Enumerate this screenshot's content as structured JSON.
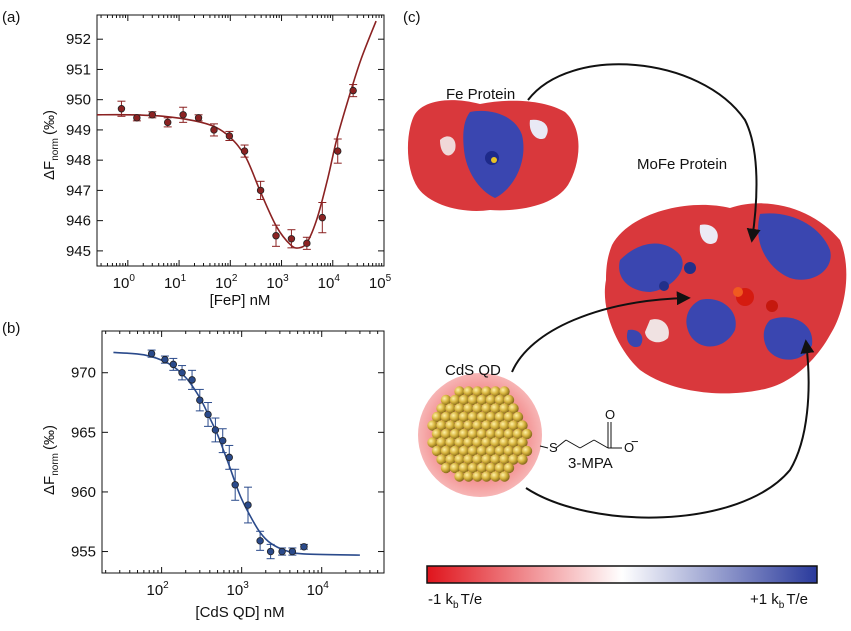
{
  "panels": {
    "a": "(a)",
    "b": "(b)",
    "c": "(c)"
  },
  "chart_data": [
    {
      "type": "scatter",
      "panel": "(a)",
      "xlabel": "[FeP] nM",
      "ylabel_main": "ΔF",
      "ylabel_sub": "norm",
      "ylabel_unit": "(‰)",
      "xscale": "log",
      "xlim": [
        0.25,
        100000
      ],
      "ylim": [
        944.5,
        952.8
      ],
      "x_ticks": [
        {
          "v": 1,
          "base": "10",
          "exp": "0"
        },
        {
          "v": 10,
          "base": "10",
          "exp": "1"
        },
        {
          "v": 100,
          "base": "10",
          "exp": "2"
        },
        {
          "v": 1000,
          "base": "10",
          "exp": "3"
        },
        {
          "v": 10000,
          "base": "10",
          "exp": "4"
        },
        {
          "v": 100000,
          "base": "10",
          "exp": "5"
        }
      ],
      "y_ticks": [
        945,
        946,
        947,
        948,
        949,
        950,
        951,
        952
      ],
      "color": "#8b2222",
      "points": [
        {
          "x": 0.75,
          "y": 949.7,
          "err": 0.25
        },
        {
          "x": 1.5,
          "y": 949.4,
          "err": 0.1
        },
        {
          "x": 3.0,
          "y": 949.5,
          "err": 0.1
        },
        {
          "x": 6.0,
          "y": 949.25,
          "err": 0.15
        },
        {
          "x": 12,
          "y": 949.5,
          "err": 0.25
        },
        {
          "x": 24,
          "y": 949.4,
          "err": 0.1
        },
        {
          "x": 48,
          "y": 949.0,
          "err": 0.2
        },
        {
          "x": 96,
          "y": 948.8,
          "err": 0.15
        },
        {
          "x": 190,
          "y": 948.3,
          "err": 0.2
        },
        {
          "x": 390,
          "y": 947.0,
          "err": 0.3
        },
        {
          "x": 780,
          "y": 945.5,
          "err": 0.35
        },
        {
          "x": 1560,
          "y": 945.4,
          "err": 0.3
        },
        {
          "x": 3120,
          "y": 945.25,
          "err": 0.2
        },
        {
          "x": 6250,
          "y": 946.1,
          "err": 0.5
        },
        {
          "x": 12500,
          "y": 948.3,
          "err": 0.4
        },
        {
          "x": 25000,
          "y": 950.3,
          "err": 0.2
        }
      ],
      "fit": [
        [
          0.25,
          949.5
        ],
        [
          1,
          949.5
        ],
        [
          5,
          949.45
        ],
        [
          20,
          949.3
        ],
        [
          50,
          949.1
        ],
        [
          100,
          948.75
        ],
        [
          200,
          948.1
        ],
        [
          400,
          946.9
        ],
        [
          800,
          945.8
        ],
        [
          1500,
          945.2
        ],
        [
          2200,
          945.1
        ],
        [
          3200,
          945.3
        ],
        [
          5000,
          946.1
        ],
        [
          8000,
          947.4
        ],
        [
          12000,
          948.7
        ],
        [
          20000,
          950.0
        ],
        [
          35000,
          951.3
        ],
        [
          70000,
          952.6
        ]
      ]
    },
    {
      "type": "scatter",
      "panel": "(b)",
      "xlabel": "[CdS QD] nM",
      "ylabel_main": "ΔF",
      "ylabel_sub": "norm",
      "ylabel_unit": "(‰)",
      "xscale": "log",
      "xlim": [
        18,
        60000
      ],
      "ylim": [
        953.2,
        973.5
      ],
      "x_ticks": [
        {
          "v": 100,
          "base": "10",
          "exp": "2"
        },
        {
          "v": 1000,
          "base": "10",
          "exp": "3"
        },
        {
          "v": 10000,
          "base": "10",
          "exp": "4"
        }
      ],
      "y_ticks": [
        955,
        960,
        965,
        970
      ],
      "color": "#2a4a8b",
      "points": [
        {
          "x": 75,
          "y": 971.6,
          "err": 0.3
        },
        {
          "x": 110,
          "y": 971.1,
          "err": 0.3
        },
        {
          "x": 140,
          "y": 970.7,
          "err": 0.5
        },
        {
          "x": 180,
          "y": 970.0,
          "err": 0.6
        },
        {
          "x": 240,
          "y": 969.4,
          "err": 0.8
        },
        {
          "x": 300,
          "y": 967.7,
          "err": 0.9
        },
        {
          "x": 380,
          "y": 966.5,
          "err": 1.0
        },
        {
          "x": 470,
          "y": 965.2,
          "err": 1.0
        },
        {
          "x": 580,
          "y": 964.3,
          "err": 1.0
        },
        {
          "x": 700,
          "y": 962.9,
          "err": 1.0
        },
        {
          "x": 830,
          "y": 960.6,
          "err": 1.3
        },
        {
          "x": 1200,
          "y": 958.9,
          "err": 1.5
        },
        {
          "x": 1700,
          "y": 955.9,
          "err": 0.8
        },
        {
          "x": 2300,
          "y": 955.0,
          "err": 0.6
        },
        {
          "x": 3200,
          "y": 955.0,
          "err": 0.3
        },
        {
          "x": 4300,
          "y": 955.0,
          "err": 0.3
        },
        {
          "x": 6000,
          "y": 955.4,
          "err": 0.2
        }
      ],
      "fit": [
        [
          25,
          971.7
        ],
        [
          60,
          971.5
        ],
        [
          120,
          970.8
        ],
        [
          200,
          969.6
        ],
        [
          300,
          967.9
        ],
        [
          400,
          966.2
        ],
        [
          500,
          964.8
        ],
        [
          600,
          963.4
        ],
        [
          700,
          962.2
        ],
        [
          850,
          960.6
        ],
        [
          1000,
          959.4
        ],
        [
          1300,
          957.9
        ],
        [
          1700,
          956.6
        ],
        [
          2300,
          955.7
        ],
        [
          3500,
          955.1
        ],
        [
          6000,
          954.8
        ],
        [
          30000,
          954.7
        ]
      ]
    }
  ],
  "diagram": {
    "fe_protein_label": "Fe Protein",
    "mofe_protein_label": "MoFe Protein",
    "cds_qd_label": "CdS QD",
    "ligand_label": "3-MPA",
    "ligand_s": "S",
    "ligand_o": "O",
    "ligand_ominus": "O",
    "ligand_charge": "−",
    "scale_left_prefix": "-1 k",
    "scale_right_prefix": "+1 k",
    "scale_sub": "b",
    "scale_suffix": "T/e",
    "colorbar_left": "#e0141c",
    "colorbar_mid": "#ffffff",
    "colorbar_right": "#2a3a9c"
  }
}
